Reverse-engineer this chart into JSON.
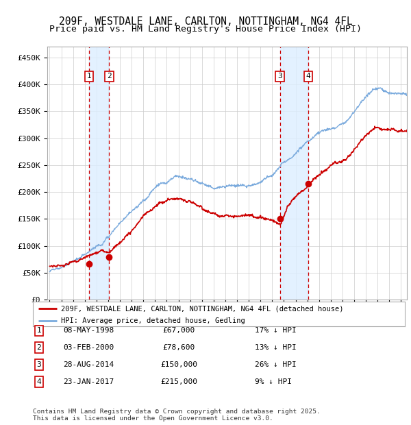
{
  "title": "209F, WESTDALE LANE, CARLTON, NOTTINGHAM, NG4 4FL",
  "subtitle": "Price paid vs. HM Land Registry's House Price Index (HPI)",
  "ylim": [
    0,
    470000
  ],
  "yticks": [
    0,
    50000,
    100000,
    150000,
    200000,
    250000,
    300000,
    350000,
    400000,
    450000
  ],
  "ytick_labels": [
    "£0",
    "£50K",
    "£100K",
    "£150K",
    "£200K",
    "£250K",
    "£300K",
    "£350K",
    "£400K",
    "£450K"
  ],
  "xlim_start": 1994.8,
  "xlim_end": 2025.5,
  "sale_dates": [
    1998.354,
    2000.089,
    2014.658,
    2017.064
  ],
  "sale_prices": [
    67000,
    78600,
    150000,
    215000
  ],
  "sale_labels": [
    "1",
    "2",
    "3",
    "4"
  ],
  "legend_line1": "209F, WESTDALE LANE, CARLTON, NOTTINGHAM, NG4 4FL (detached house)",
  "legend_line2": "HPI: Average price, detached house, Gedling",
  "table_rows": [
    {
      "num": "1",
      "date": "08-MAY-1998",
      "price": "£67,000",
      "hpi": "17% ↓ HPI"
    },
    {
      "num": "2",
      "date": "03-FEB-2000",
      "price": "£78,600",
      "hpi": "13% ↓ HPI"
    },
    {
      "num": "3",
      "date": "28-AUG-2014",
      "price": "£150,000",
      "hpi": "26% ↓ HPI"
    },
    {
      "num": "4",
      "date": "23-JAN-2017",
      "price": "£215,000",
      "hpi": "9% ↓ HPI"
    }
  ],
  "footer": "Contains HM Land Registry data © Crown copyright and database right 2025.\nThis data is licensed under the Open Government Licence v3.0.",
  "red_line_color": "#cc0000",
  "blue_line_color": "#7aaadd",
  "shade_color": "#ddeeff",
  "grid_color": "#cccccc",
  "title_fontsize": 10.5,
  "subtitle_fontsize": 9.5,
  "hpi_knots_x": [
    1995.0,
    1996.0,
    1997.0,
    1998.0,
    1999.0,
    2000.0,
    2001.0,
    2002.0,
    2003.0,
    2004.0,
    2005.0,
    2006.0,
    2007.0,
    2008.0,
    2009.0,
    2010.0,
    2011.0,
    2012.0,
    2013.0,
    2014.0,
    2015.0,
    2016.0,
    2017.0,
    2018.0,
    2019.0,
    2020.0,
    2021.0,
    2022.0,
    2023.0,
    2024.0,
    2025.5
  ],
  "hpi_knots_y": [
    58000,
    65000,
    72000,
    83000,
    98000,
    115000,
    140000,
    163000,
    185000,
    210000,
    222000,
    230000,
    225000,
    215000,
    205000,
    208000,
    210000,
    210000,
    218000,
    228000,
    252000,
    275000,
    295000,
    312000,
    322000,
    330000,
    355000,
    380000,
    390000,
    380000,
    370000
  ],
  "red_knots_x": [
    1995.0,
    1996.0,
    1997.0,
    1998.354,
    2000.089,
    2001.0,
    2002.0,
    2003.0,
    2004.0,
    2005.0,
    2006.0,
    2007.0,
    2008.0,
    2009.0,
    2010.0,
    2011.0,
    2012.0,
    2013.0,
    2014.0,
    2014.658,
    2015.5,
    2017.064,
    2018.0,
    2019.0,
    2020.0,
    2021.0,
    2022.0,
    2023.0,
    2024.0,
    2025.0,
    2025.5
  ],
  "red_knots_y": [
    47000,
    50000,
    58000,
    67000,
    78600,
    95000,
    118000,
    145000,
    162000,
    175000,
    178000,
    175000,
    168000,
    158000,
    158000,
    160000,
    162000,
    162000,
    160000,
    150000,
    185000,
    215000,
    238000,
    258000,
    268000,
    290000,
    318000,
    335000,
    330000,
    328000,
    330000
  ]
}
